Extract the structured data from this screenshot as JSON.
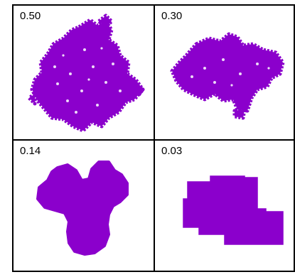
{
  "panels": [
    {
      "label": "0.50",
      "shape": "rough-cluster-large"
    },
    {
      "label": "0.30",
      "shape": "rough-cluster-wide"
    },
    {
      "label": "0.14",
      "shape": "rough-y-shape"
    },
    {
      "label": "0.03",
      "shape": "smooth-block-cluster"
    }
  ],
  "colors": {
    "cluster_fill": "#8b00cc",
    "border": "#000000",
    "background": "#ffffff"
  }
}
